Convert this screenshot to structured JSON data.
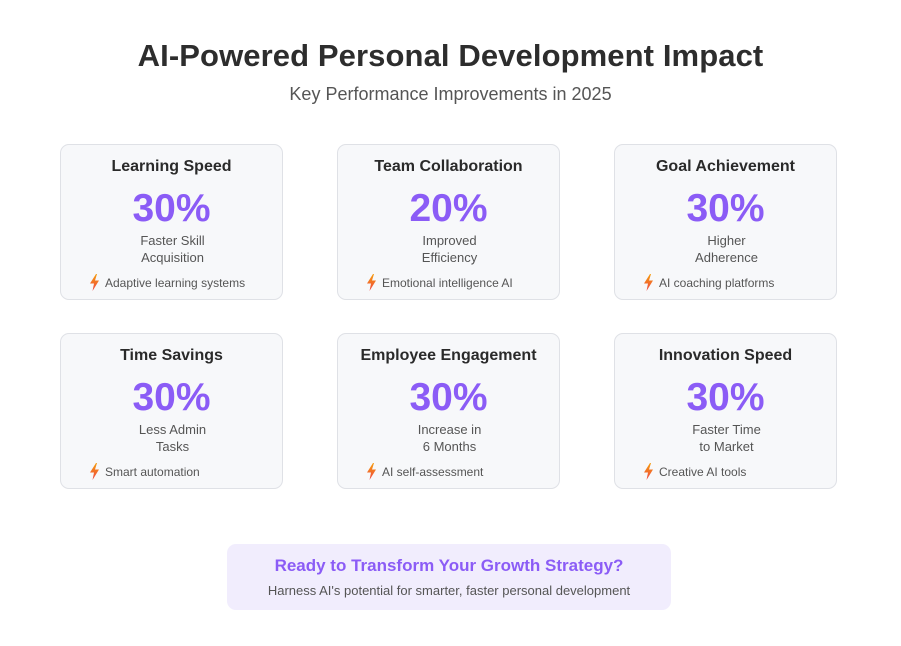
{
  "header": {
    "title": "AI-Powered Personal Development Impact",
    "subtitle": "Key Performance Improvements in 2025"
  },
  "cards": [
    {
      "title": "Learning Speed",
      "value": "30%",
      "description": "Faster Skill\nAcquisition",
      "note": "Adaptive learning systems",
      "note_icon": "lightning-bolt-icon"
    },
    {
      "title": "Team Collaboration",
      "value": "20%",
      "description": "Improved\nEfficiency",
      "note": "Emotional intelligence AI",
      "note_icon": "lightning-bolt-icon"
    },
    {
      "title": "Goal Achievement",
      "value": "30%",
      "description": "Higher\nAdherence",
      "note": "AI coaching platforms",
      "note_icon": "lightning-bolt-icon"
    },
    {
      "title": "Time Savings",
      "value": "30%",
      "description": "Less Admin\nTasks",
      "note": "Smart automation",
      "note_icon": "lightning-bolt-icon"
    },
    {
      "title": "Employee Engagement",
      "value": "30%",
      "description": "Increase in\n6 Months",
      "note": "AI self-assessment",
      "note_icon": "lightning-bolt-icon"
    },
    {
      "title": "Innovation Speed",
      "value": "30%",
      "description": "Faster Time\nto Market",
      "note": "Creative AI tools",
      "note_icon": "lightning-bolt-icon"
    }
  ],
  "cta": {
    "title": "Ready to Transform Your Growth Strategy?",
    "text": "Harness AI's potential for smarter, faster personal development"
  },
  "colors": {
    "accent": "#8b5cf6",
    "card_background": "#f7f8fa",
    "card_border": "#dfe1e6",
    "cta_background": "#f1edfd",
    "bolt_top": "#f59e0b",
    "bolt_bottom": "#ef4444"
  }
}
